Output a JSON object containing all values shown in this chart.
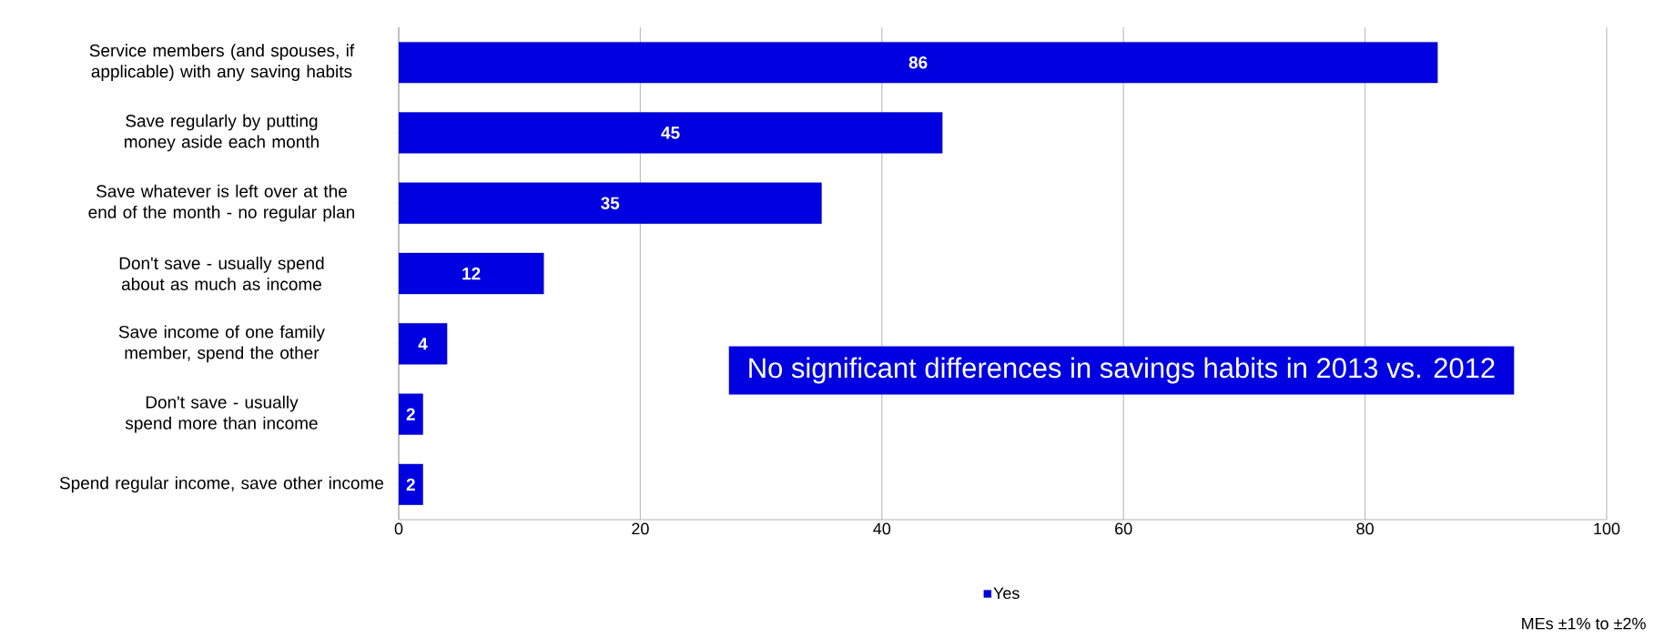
{
  "chart_data": {
    "type": "bar",
    "orientation": "horizontal",
    "categories": [
      "Service members (and spouses, if applicable) with any saving habits",
      "Save regularly by putting money aside each month",
      "Save whatever is left over at the end of the month - no regular plan",
      "Don't save - usually spend about as much as income",
      "Save income of one family member, spend the other",
      "Don't save - usually spend more than income",
      "Spend regular income, save other income"
    ],
    "series": [
      {
        "name": "Yes",
        "color": "#0000e0",
        "values": [
          86,
          45,
          35,
          12,
          4,
          2,
          2
        ]
      }
    ],
    "data_labels": true,
    "xlim": [
      0,
      100
    ],
    "xticks": [
      0,
      20,
      40,
      60,
      80,
      100
    ],
    "grid": "x",
    "legend": "bottom",
    "annotations": [
      "No significant differences in savings habits in 2013 vs. 2012",
      "MEs ±1% to ±2%"
    ]
  }
}
